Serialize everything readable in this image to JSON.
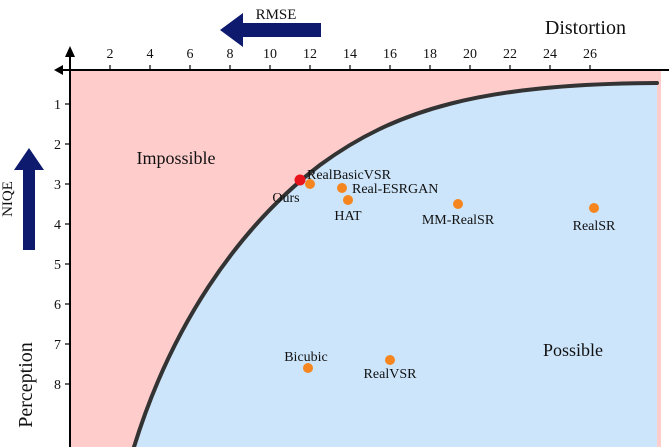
{
  "chart_data": {
    "type": "scatter",
    "title": "",
    "x_axis": {
      "label": "RMSE",
      "corner_label": "Distortion",
      "ticks": [
        2,
        4,
        6,
        8,
        10,
        12,
        14,
        16,
        18,
        20,
        22,
        24,
        26
      ],
      "range": [
        -0.5,
        29.5
      ],
      "position": "top"
    },
    "y_axis": {
      "label": "NIQE",
      "corner_label": "Perception",
      "ticks": [
        1,
        2,
        3,
        4,
        5,
        6,
        7,
        8
      ],
      "range": [
        0,
        9.2
      ],
      "inverted": true
    },
    "regions": [
      {
        "label": "Impossible",
        "color": "#ffcccc"
      },
      {
        "label": "Possible",
        "color": "#cce5fa"
      }
    ],
    "points": [
      {
        "name": "Ours",
        "x": 11.5,
        "y": 2.9,
        "color": "#e8141c"
      },
      {
        "name": "RealBasicVSR",
        "x": 12.0,
        "y": 3.0,
        "color": "#f5861f"
      },
      {
        "name": "Real-ESRGAN",
        "x": 13.6,
        "y": 3.1,
        "color": "#f5861f"
      },
      {
        "name": "HAT",
        "x": 13.9,
        "y": 3.4,
        "color": "#f5861f"
      },
      {
        "name": "MM-RealSR",
        "x": 19.4,
        "y": 3.5,
        "color": "#f5861f"
      },
      {
        "name": "RealSR",
        "x": 26.2,
        "y": 3.6,
        "color": "#f5861f"
      },
      {
        "name": "Bicubic",
        "x": 11.9,
        "y": 7.6,
        "color": "#f5861f"
      },
      {
        "name": "RealVSR",
        "x": 16.0,
        "y": 7.4,
        "color": "#f5861f"
      }
    ],
    "boundary_color": "#333333",
    "arrow_color": "#0d1a6e",
    "grid": false,
    "legend": "none"
  }
}
